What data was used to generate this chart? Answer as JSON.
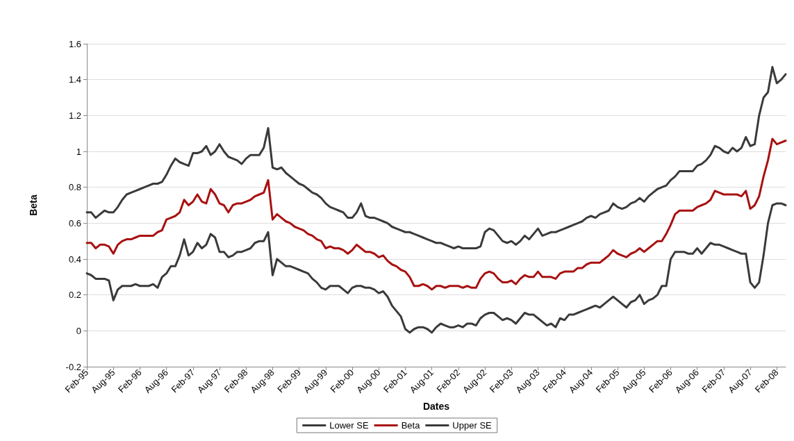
{
  "chart_data": {
    "type": "line",
    "xlabel": "Dates",
    "ylabel": "Beta",
    "categories": [
      "Feb-95",
      null,
      null,
      null,
      null,
      null,
      "Aug-95",
      null,
      null,
      null,
      null,
      null,
      "Feb-96",
      null,
      null,
      null,
      null,
      null,
      "Aug-96",
      null,
      null,
      null,
      null,
      null,
      "Feb-97",
      null,
      null,
      null,
      null,
      null,
      "Aug-97",
      null,
      null,
      null,
      null,
      null,
      "Feb-98",
      null,
      null,
      null,
      null,
      null,
      "Aug-98",
      null,
      null,
      null,
      null,
      null,
      "Feb-99",
      null,
      null,
      null,
      null,
      null,
      "Aug-99",
      null,
      null,
      null,
      null,
      null,
      "Feb-00",
      null,
      null,
      null,
      null,
      null,
      "Aug-00",
      null,
      null,
      null,
      null,
      null,
      "Feb-01",
      null,
      null,
      null,
      null,
      null,
      "Aug-01",
      null,
      null,
      null,
      null,
      null,
      "Feb-02",
      null,
      null,
      null,
      null,
      null,
      "Aug-02",
      null,
      null,
      null,
      null,
      null,
      "Feb-03",
      null,
      null,
      null,
      null,
      null,
      "Aug-03",
      null,
      null,
      null,
      null,
      null,
      "Feb-04",
      null,
      null,
      null,
      null,
      null,
      "Aug-04",
      null,
      null,
      null,
      null,
      null,
      "Feb-05",
      null,
      null,
      null,
      null,
      null,
      "Aug-05",
      null,
      null,
      null,
      null,
      null,
      "Feb-06",
      null,
      null,
      null,
      null,
      null,
      "Aug-06",
      null,
      null,
      null,
      null,
      null,
      "Feb-07",
      null,
      null,
      null,
      null,
      null,
      "Aug-07",
      null,
      null,
      null,
      null,
      null,
      "Feb-08",
      null,
      null
    ],
    "series": [
      {
        "name": "Lower SE",
        "color": "#3a3a3a",
        "values": [
          0.32,
          0.31,
          0.29,
          0.29,
          0.29,
          0.28,
          0.17,
          0.23,
          0.25,
          0.25,
          0.25,
          0.26,
          0.25,
          0.25,
          0.25,
          0.26,
          0.24,
          0.3,
          0.32,
          0.36,
          0.36,
          0.42,
          0.51,
          0.42,
          0.44,
          0.49,
          0.46,
          0.48,
          0.54,
          0.52,
          0.44,
          0.44,
          0.41,
          0.42,
          0.44,
          0.44,
          0.45,
          0.46,
          0.49,
          0.5,
          0.5,
          0.55,
          0.31,
          0.4,
          0.38,
          0.36,
          0.36,
          0.35,
          0.34,
          0.33,
          0.32,
          0.29,
          0.27,
          0.24,
          0.23,
          0.25,
          0.25,
          0.25,
          0.23,
          0.21,
          0.24,
          0.25,
          0.25,
          0.24,
          0.24,
          0.23,
          0.21,
          0.22,
          0.19,
          0.14,
          0.11,
          0.08,
          0.01,
          -0.01,
          0.01,
          0.02,
          0.02,
          0.01,
          -0.01,
          0.02,
          0.04,
          0.03,
          0.02,
          0.02,
          0.03,
          0.02,
          0.04,
          0.04,
          0.03,
          0.07,
          0.09,
          0.1,
          0.1,
          0.08,
          0.06,
          0.07,
          0.06,
          0.04,
          0.07,
          0.1,
          0.09,
          0.09,
          0.07,
          0.05,
          0.03,
          0.04,
          0.02,
          0.07,
          0.06,
          0.09,
          0.09,
          0.1,
          0.11,
          0.12,
          0.13,
          0.14,
          0.13,
          0.15,
          0.17,
          0.19,
          0.17,
          0.15,
          0.13,
          0.16,
          0.17,
          0.2,
          0.15,
          0.17,
          0.18,
          0.2,
          0.25,
          0.25,
          0.4,
          0.44,
          0.44,
          0.44,
          0.43,
          0.43,
          0.46,
          0.43,
          0.46,
          0.49,
          0.48,
          0.48,
          0.47,
          0.46,
          0.45,
          0.44,
          0.43,
          0.43,
          0.27,
          0.24,
          0.27,
          0.42,
          0.6,
          0.7,
          0.71,
          0.71,
          0.7
        ]
      },
      {
        "name": "Beta",
        "color": "#a81010",
        "values": [
          0.49,
          0.49,
          0.46,
          0.48,
          0.48,
          0.47,
          0.43,
          0.48,
          0.5,
          0.51,
          0.51,
          0.52,
          0.53,
          0.53,
          0.53,
          0.53,
          0.55,
          0.56,
          0.62,
          0.63,
          0.64,
          0.66,
          0.73,
          0.7,
          0.72,
          0.76,
          0.72,
          0.71,
          0.79,
          0.76,
          0.71,
          0.7,
          0.66,
          0.7,
          0.71,
          0.71,
          0.72,
          0.73,
          0.75,
          0.76,
          0.77,
          0.84,
          0.62,
          0.65,
          0.63,
          0.61,
          0.6,
          0.58,
          0.57,
          0.56,
          0.54,
          0.53,
          0.51,
          0.5,
          0.46,
          0.47,
          0.46,
          0.46,
          0.45,
          0.43,
          0.45,
          0.48,
          0.46,
          0.44,
          0.44,
          0.43,
          0.41,
          0.42,
          0.39,
          0.37,
          0.36,
          0.34,
          0.33,
          0.3,
          0.25,
          0.25,
          0.26,
          0.25,
          0.23,
          0.25,
          0.25,
          0.24,
          0.25,
          0.25,
          0.25,
          0.24,
          0.25,
          0.24,
          0.24,
          0.29,
          0.32,
          0.33,
          0.32,
          0.29,
          0.27,
          0.27,
          0.28,
          0.26,
          0.29,
          0.31,
          0.3,
          0.3,
          0.33,
          0.3,
          0.3,
          0.3,
          0.29,
          0.32,
          0.33,
          0.33,
          0.33,
          0.35,
          0.35,
          0.37,
          0.38,
          0.38,
          0.38,
          0.4,
          0.42,
          0.45,
          0.43,
          0.42,
          0.41,
          0.43,
          0.44,
          0.46,
          0.44,
          0.46,
          0.48,
          0.5,
          0.5,
          0.54,
          0.59,
          0.65,
          0.67,
          0.67,
          0.67,
          0.67,
          0.69,
          0.7,
          0.71,
          0.73,
          0.78,
          0.77,
          0.76,
          0.76,
          0.76,
          0.76,
          0.75,
          0.78,
          0.68,
          0.7,
          0.75,
          0.86,
          0.95,
          1.07,
          1.04,
          1.05,
          1.06
        ]
      },
      {
        "name": "Upper SE",
        "color": "#3a3a3a",
        "values": [
          0.66,
          0.66,
          0.63,
          0.65,
          0.67,
          0.66,
          0.66,
          0.69,
          0.73,
          0.76,
          0.77,
          0.78,
          0.79,
          0.8,
          0.81,
          0.82,
          0.82,
          0.83,
          0.87,
          0.92,
          0.96,
          0.94,
          0.93,
          0.92,
          0.99,
          0.99,
          1.0,
          1.03,
          0.98,
          1.0,
          1.04,
          1.0,
          0.97,
          0.96,
          0.95,
          0.93,
          0.96,
          0.98,
          0.98,
          0.98,
          1.02,
          1.13,
          0.91,
          0.9,
          0.91,
          0.88,
          0.86,
          0.84,
          0.82,
          0.81,
          0.79,
          0.77,
          0.76,
          0.74,
          0.71,
          0.69,
          0.68,
          0.67,
          0.66,
          0.63,
          0.63,
          0.66,
          0.71,
          0.64,
          0.63,
          0.63,
          0.62,
          0.61,
          0.6,
          0.58,
          0.57,
          0.56,
          0.55,
          0.55,
          0.54,
          0.53,
          0.52,
          0.51,
          0.5,
          0.49,
          0.49,
          0.48,
          0.47,
          0.46,
          0.47,
          0.46,
          0.46,
          0.46,
          0.46,
          0.47,
          0.55,
          0.57,
          0.56,
          0.53,
          0.5,
          0.49,
          0.5,
          0.48,
          0.5,
          0.53,
          0.51,
          0.54,
          0.57,
          0.53,
          0.54,
          0.55,
          0.55,
          0.56,
          0.57,
          0.58,
          0.59,
          0.6,
          0.61,
          0.63,
          0.64,
          0.63,
          0.65,
          0.66,
          0.67,
          0.71,
          0.69,
          0.68,
          0.69,
          0.71,
          0.72,
          0.74,
          0.72,
          0.75,
          0.77,
          0.79,
          0.8,
          0.81,
          0.84,
          0.86,
          0.89,
          0.89,
          0.89,
          0.89,
          0.92,
          0.93,
          0.95,
          0.98,
          1.03,
          1.02,
          1.0,
          0.99,
          1.02,
          1.0,
          1.02,
          1.08,
          1.03,
          1.04,
          1.2,
          1.3,
          1.33,
          1.47,
          1.38,
          1.4,
          1.43
        ]
      }
    ],
    "ylim": [
      -0.2,
      1.6
    ],
    "yticks": [
      -0.2,
      0,
      0.2,
      0.4,
      0.6,
      0.8,
      1,
      1.2,
      1.4,
      1.6
    ],
    "grid": "y",
    "legend": "bottom",
    "marker": "none",
    "line_style": "solid"
  }
}
